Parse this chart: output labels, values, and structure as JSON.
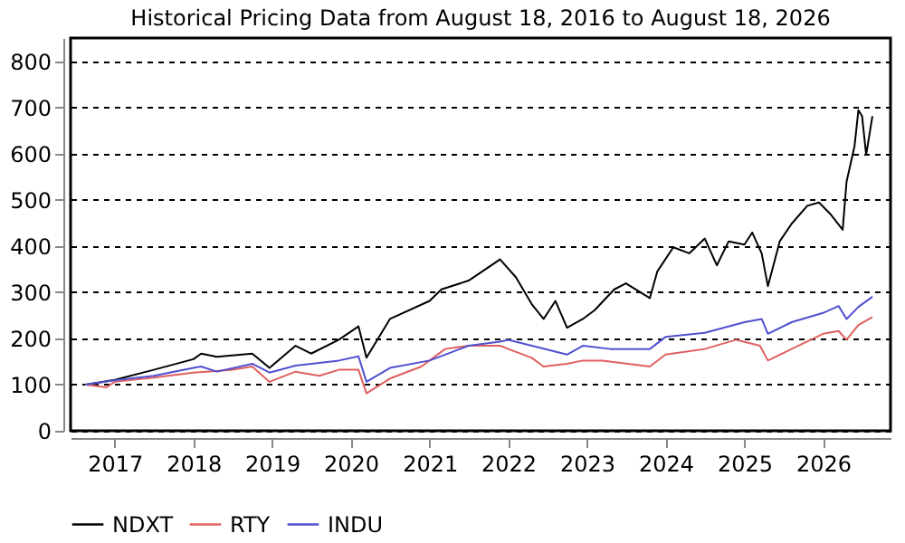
{
  "chart_data": {
    "type": "line",
    "title": "Historical Pricing Data from August 18, 2016 to August 18, 2026",
    "xlim": [
      "2016-06-10",
      "2026-11-10"
    ],
    "xticks": [
      {
        "value": "2017-01-01",
        "label": "2017"
      },
      {
        "value": "2018-01-01",
        "label": "2018"
      },
      {
        "value": "2019-01-01",
        "label": "2019"
      },
      {
        "value": "2020-01-01",
        "label": "2020"
      },
      {
        "value": "2021-01-01",
        "label": "2021"
      },
      {
        "value": "2022-01-01",
        "label": "2022"
      },
      {
        "value": "2023-01-01",
        "label": "2023"
      },
      {
        "value": "2024-01-01",
        "label": "2024"
      },
      {
        "value": "2025-01-01",
        "label": "2025"
      },
      {
        "value": "2026-01-01",
        "label": "2026"
      }
    ],
    "ylim": [
      0,
      850
    ],
    "yticks": [
      0,
      100,
      200,
      300,
      400,
      500,
      600,
      700,
      800
    ],
    "grid": "y",
    "legend": "bottom",
    "marker": "none",
    "line_style": "solid",
    "series": [
      {
        "name": "NDXT",
        "color": "#000000",
        "x": [
          "2016-08-18",
          "2017-01-01",
          "2017-07-01",
          "2018-01-01",
          "2018-02-06",
          "2018-04-20",
          "2018-10-01",
          "2018-12-20",
          "2019-04-20",
          "2019-07-01",
          "2019-11-07",
          "2020-02-06",
          "2020-03-14",
          "2020-07-01",
          "2021-01-01",
          "2021-02-25",
          "2021-07-01",
          "2021-11-24",
          "2022-02-06",
          "2022-04-20",
          "2022-06-14",
          "2022-08-08",
          "2022-10-01",
          "2022-12-13",
          "2023-02-06",
          "2023-05-08",
          "2023-07-01",
          "2023-10-20",
          "2023-11-24",
          "2024-02-06",
          "2024-04-20",
          "2024-07-01",
          "2024-08-26",
          "2024-10-20",
          "2025-01-01",
          "2025-02-06",
          "2025-03-22",
          "2025-04-20",
          "2025-06-14",
          "2025-08-08",
          "2025-10-20",
          "2025-12-13",
          "2026-02-06",
          "2026-04-02",
          "2026-04-20",
          "2026-05-27",
          "2026-06-14",
          "2026-07-01",
          "2026-07-20",
          "2026-08-18"
        ],
        "values": [
          100,
          110,
          132,
          155,
          167,
          160,
          167,
          136,
          184,
          167,
          197,
          226,
          158,
          242,
          281,
          306,
          325,
          371,
          332,
          274,
          242,
          281,
          223,
          242,
          261,
          306,
          319,
          287,
          345,
          397,
          384,
          416,
          358,
          410,
          403,
          429,
          384,
          313,
          410,
          448,
          487,
          494,
          468,
          435,
          539,
          616,
          694,
          681,
          597,
          681
        ]
      },
      {
        "name": "RTY",
        "color": "#e06060",
        "x": [
          "2016-08-18",
          "2016-11-24",
          "2017-01-01",
          "2017-07-01",
          "2018-01-01",
          "2018-07-01",
          "2018-10-01",
          "2018-12-20",
          "2019-04-20",
          "2019-08-08",
          "2019-11-07",
          "2020-02-06",
          "2020-03-14",
          "2020-07-01",
          "2020-11-24",
          "2021-03-14",
          "2021-07-01",
          "2021-11-24",
          "2022-01-01",
          "2022-04-20",
          "2022-06-14",
          "2022-10-01",
          "2022-12-13",
          "2023-03-14",
          "2023-10-20",
          "2024-01-01",
          "2024-07-01",
          "2024-11-24",
          "2025-03-14",
          "2025-04-20",
          "2025-08-08",
          "2026-01-01",
          "2026-03-14",
          "2026-04-20",
          "2026-06-14",
          "2026-08-18"
        ],
        "values": [
          100,
          94,
          106,
          115,
          126,
          132,
          139,
          106,
          128,
          119,
          132,
          132,
          81,
          113,
          139,
          177,
          184,
          184,
          177,
          158,
          139,
          145,
          152,
          152,
          139,
          165,
          177,
          197,
          184,
          152,
          177,
          210,
          216,
          197,
          229,
          246
        ]
      },
      {
        "name": "INDU",
        "color": "#5050d0",
        "x": [
          "2016-08-18",
          "2017-01-01",
          "2017-07-01",
          "2018-01-01",
          "2018-02-06",
          "2018-04-20",
          "2018-10-01",
          "2018-12-20",
          "2019-04-20",
          "2019-11-07",
          "2020-02-06",
          "2020-03-14",
          "2020-07-01",
          "2021-01-01",
          "2021-07-01",
          "2021-11-24",
          "2022-01-01",
          "2022-04-20",
          "2022-10-01",
          "2022-12-13",
          "2023-04-20",
          "2023-10-20",
          "2024-01-01",
          "2024-07-01",
          "2025-01-01",
          "2025-03-22",
          "2025-04-20",
          "2025-08-08",
          "2026-01-01",
          "2026-03-14",
          "2026-04-20",
          "2026-06-14",
          "2026-08-18"
        ],
        "values": [
          100,
          109,
          119,
          136,
          139,
          128,
          145,
          126,
          141,
          152,
          161,
          106,
          136,
          152,
          184,
          193,
          197,
          184,
          165,
          184,
          177,
          177,
          203,
          212,
          235,
          242,
          210,
          235,
          255,
          270,
          242,
          268,
          290
        ]
      }
    ]
  }
}
